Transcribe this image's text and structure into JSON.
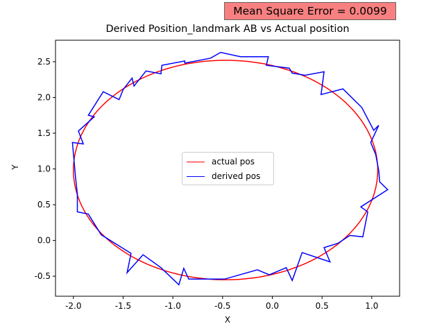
{
  "annotation": {
    "text": "Mean Square Error = 0.0099",
    "color": "#f88080"
  },
  "chart_data": {
    "type": "line",
    "title": "Derived Position_landmark AB vs Actual position",
    "xlabel": "X",
    "ylabel": "Y",
    "xlim": [
      -2.18,
      1.28
    ],
    "ylim": [
      -0.78,
      2.8
    ],
    "xticks": [
      "-2.0",
      "-1.5",
      "-1.0",
      "-0.5",
      "0.0",
      "0.5",
      "1.0"
    ],
    "yticks": [
      "-0.5",
      "0.0",
      "0.5",
      "1.0",
      "1.5",
      "2.0",
      "2.5"
    ],
    "legend_position": "center",
    "series": [
      {
        "name": "actual pos",
        "color": "#ff0000",
        "ellipse": {
          "center_x": -0.47,
          "center_y": 0.985,
          "radius_x": 1.53,
          "radius_y": 1.535
        }
      },
      {
        "name": "derived pos",
        "color": "#0000ff",
        "points": [
          [
            1.07,
            0.98
          ],
          [
            1.08,
            0.82
          ],
          [
            1.16,
            0.71
          ],
          [
            0.89,
            0.47
          ],
          [
            0.96,
            0.4
          ],
          [
            0.91,
            0.05
          ],
          [
            0.78,
            0.07
          ],
          [
            0.66,
            -0.04
          ],
          [
            0.52,
            -0.1
          ],
          [
            0.58,
            -0.3
          ],
          [
            0.3,
            -0.17
          ],
          [
            0.2,
            -0.56
          ],
          [
            0.14,
            -0.38
          ],
          [
            -0.03,
            -0.48
          ],
          [
            -0.15,
            -0.41
          ],
          [
            -0.48,
            -0.54
          ],
          [
            -0.84,
            -0.54
          ],
          [
            -0.89,
            -0.39
          ],
          [
            -0.94,
            -0.62
          ],
          [
            -1.12,
            -0.38
          ],
          [
            -1.3,
            -0.2
          ],
          [
            -1.46,
            -0.45
          ],
          [
            -1.42,
            -0.18
          ],
          [
            -1.72,
            0.08
          ],
          [
            -1.85,
            0.37
          ],
          [
            -1.96,
            0.4
          ],
          [
            -1.96,
            0.65
          ],
          [
            -1.98,
            0.9
          ],
          [
            -2.01,
            1.37
          ],
          [
            -1.9,
            1.35
          ],
          [
            -1.95,
            1.53
          ],
          [
            -1.79,
            1.73
          ],
          [
            -1.85,
            1.75
          ],
          [
            -1.7,
            2.08
          ],
          [
            -1.54,
            1.97
          ],
          [
            -1.5,
            2.11
          ],
          [
            -1.41,
            2.27
          ],
          [
            -1.39,
            2.16
          ],
          [
            -1.27,
            2.37
          ],
          [
            -1.12,
            2.33
          ],
          [
            -1.11,
            2.45
          ],
          [
            -0.88,
            2.51
          ],
          [
            -0.88,
            2.48
          ],
          [
            -0.62,
            2.55
          ],
          [
            -0.52,
            2.63
          ],
          [
            -0.32,
            2.57
          ],
          [
            -0.04,
            2.57
          ],
          [
            -0.06,
            2.45
          ],
          [
            0.17,
            2.41
          ],
          [
            0.2,
            2.34
          ],
          [
            0.33,
            2.31
          ],
          [
            0.52,
            2.36
          ],
          [
            0.49,
            2.04
          ],
          [
            0.71,
            2.12
          ],
          [
            0.9,
            1.86
          ],
          [
            1.02,
            1.54
          ],
          [
            1.07,
            1.61
          ],
          [
            0.99,
            1.37
          ],
          [
            1.04,
            1.2
          ],
          [
            1.07,
            0.98
          ]
        ]
      }
    ]
  }
}
